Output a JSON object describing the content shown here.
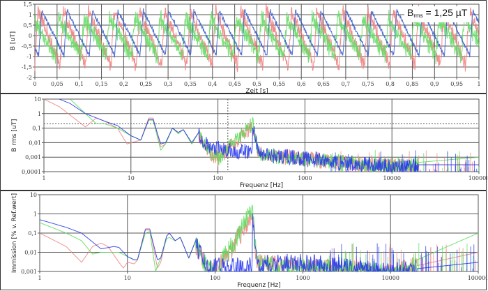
{
  "chart_data": [
    {
      "type": "line",
      "title": "",
      "xlabel": "Zeit [s]",
      "ylabel": "B [uT]",
      "xlim": [
        0,
        1
      ],
      "ylim": [
        -2,
        1.5
      ],
      "grid": true,
      "x_ticks": [
        "0",
        "0,05",
        "0,1",
        "0,15",
        "0,2",
        "0,25",
        "0,3",
        "0,35",
        "0,4",
        "0,45",
        "0,5",
        "0,55",
        "0,6",
        "0,65",
        "0,7",
        "0,75",
        "0,8",
        "0,85",
        "0,9",
        "0,95",
        "1"
      ],
      "y_ticks": [
        "1,5",
        "1",
        "0,5",
        "0",
        "-0,5",
        "-1",
        "-1,5",
        "-2"
      ],
      "annotation": {
        "prefix": "B",
        "subscript": "rms",
        "text": " = 1,25 µT"
      },
      "series": [
        {
          "name": "blue",
          "color": "#3a5fcd",
          "description": "sawtooth ~17.5 Hz, peaks ~1.2, troughs ~-1.0"
        },
        {
          "name": "red",
          "color": "#f08080",
          "description": "sawtooth ~17.5 Hz with ripple, peaks ~1.2, troughs ~-1.5"
        },
        {
          "name": "green",
          "color": "#66dd66",
          "description": "sawtooth ~17.5 Hz with ripple, peaks ~0.9, troughs ~-1.0"
        }
      ],
      "reference_line": {
        "y": 0,
        "style": "dotted"
      }
    },
    {
      "type": "line",
      "title": "",
      "xlabel": "Frequenz [Hz]",
      "ylabel": "B rms [uT]",
      "xscale": "log",
      "yscale": "log",
      "xlim": [
        1,
        100000
      ],
      "ylim": [
        0.0001,
        10
      ],
      "grid": true,
      "x_ticks": [
        "1",
        "10",
        "100",
        "1000",
        "10000",
        "100000"
      ],
      "y_ticks": [
        "10",
        "1",
        "0,1",
        "0,01",
        "0,001",
        "0,0001"
      ],
      "reference_lines": [
        {
          "axis": "y",
          "value": 0.2,
          "style": "dotted"
        },
        {
          "axis": "x",
          "value": 130,
          "style": "dotted"
        }
      ],
      "series": [
        {
          "name": "blue",
          "color": "#2233ee",
          "x": [
            1.5,
            2,
            3,
            5,
            7,
            10,
            13,
            16,
            18,
            22,
            25,
            30,
            35,
            40,
            50,
            60,
            80,
            100,
            150,
            250,
            250,
            300,
            1000,
            3000,
            10000,
            100000
          ],
          "values": [
            10,
            5,
            1,
            0.3,
            0.15,
            0.03,
            0.015,
            0.4,
            0.4,
            0.008,
            0.01,
            0.1,
            0.05,
            0.08,
            0.01,
            0.05,
            0.005,
            0.005,
            0.003,
            0.003,
            0.2,
            0.002,
            0.001,
            0.0005,
            0.0003,
            0.0003
          ]
        },
        {
          "name": "red",
          "color": "#f08080",
          "x": [
            1,
            1.5,
            3,
            4,
            5,
            7,
            9,
            10,
            13,
            16,
            18,
            22,
            25,
            30,
            35,
            40,
            50,
            60,
            80,
            100,
            250,
            300,
            1000,
            3000,
            10000,
            100000
          ],
          "values": [
            10,
            3,
            0.12,
            0.5,
            0.3,
            0.1,
            0.008,
            0.01,
            0.015,
            0.5,
            0.5,
            0.005,
            0.008,
            0.1,
            0.05,
            0.08,
            0.008,
            0.05,
            0.003,
            0.001,
            0.15,
            0.002,
            0.001,
            0.0005,
            0.0003,
            0.0003
          ]
        },
        {
          "name": "green",
          "color": "#55dd55",
          "x": [
            2,
            3,
            4,
            5,
            7,
            10,
            13,
            16,
            18,
            22,
            25,
            30,
            35,
            40,
            50,
            60,
            80,
            100,
            250,
            300,
            1000,
            3000,
            10000,
            100000
          ],
          "values": [
            10,
            1,
            0.2,
            0.2,
            0.1,
            0.03,
            0.015,
            0.35,
            0.35,
            0.003,
            0.008,
            0.1,
            0.04,
            0.08,
            0.008,
            0.05,
            0.003,
            0.001,
            0.25,
            0.002,
            0.001,
            0.0005,
            0.0003,
            0.001
          ]
        }
      ]
    },
    {
      "type": "line",
      "title": "",
      "xlabel": "Frequenz [Hz]",
      "ylabel": "Immission [% v. Ref.wert]",
      "xscale": "log",
      "yscale": "log",
      "xlim": [
        1,
        100000
      ],
      "ylim": [
        0.001,
        10
      ],
      "grid": true,
      "x_ticks": [
        "1",
        "10",
        "100",
        "1000",
        "10000",
        "100000"
      ],
      "y_ticks": [
        "10",
        "1",
        "0,1",
        "0,01",
        "0,001"
      ],
      "series": [
        {
          "name": "blue",
          "color": "#2233ee",
          "x": [
            1,
            2,
            3,
            5,
            7,
            8,
            10,
            12,
            13,
            16,
            18,
            22,
            24,
            28,
            30,
            35,
            40,
            50,
            60,
            80,
            100,
            265,
            265,
            300,
            1000,
            3000,
            10000,
            100000
          ],
          "values": [
            0.5,
            0.2,
            0.1,
            0.015,
            0.02,
            0.018,
            0.006,
            0.004,
            0.004,
            0.15,
            0.15,
            0.004,
            0.005,
            0.07,
            0.1,
            0.04,
            0.06,
            0.005,
            0.04,
            0.002,
            0.002,
            0.002,
            1.5,
            0.003,
            0.003,
            0.002,
            0.001,
            0.003
          ]
        },
        {
          "name": "red",
          "color": "#f08080",
          "x": [
            1,
            2,
            3,
            4,
            5,
            6,
            8,
            9,
            10,
            12,
            13,
            16,
            18,
            22,
            24,
            28,
            30,
            35,
            40,
            50,
            60,
            80,
            100,
            265,
            300,
            1000,
            3000,
            10000,
            100000
          ],
          "values": [
            0.1,
            0.02,
            0.003,
            0.02,
            0.03,
            0.02,
            0.003,
            0.0015,
            0.003,
            0.0025,
            0.004,
            0.17,
            0.17,
            0.0015,
            0.003,
            0.07,
            0.1,
            0.04,
            0.06,
            0.005,
            0.04,
            0.002,
            0.001,
            1.0,
            0.003,
            0.002,
            0.0015,
            0.001,
            0.01
          ]
        },
        {
          "name": "green",
          "color": "#55dd55",
          "x": [
            1,
            2,
            3,
            4,
            5,
            7,
            8,
            10,
            12,
            13,
            16,
            18,
            21,
            22,
            24,
            28,
            30,
            35,
            40,
            50,
            60,
            80,
            100,
            265,
            300,
            1000,
            3000,
            10000,
            100000
          ],
          "values": [
            0.35,
            0.1,
            0.04,
            0.008,
            0.01,
            0.01,
            0.01,
            0.006,
            0.004,
            0.004,
            0.1,
            0.12,
            0.001,
            0.002,
            0.005,
            0.05,
            0.06,
            0.04,
            0.06,
            0.005,
            0.04,
            0.002,
            0.001,
            2.0,
            0.003,
            0.002,
            0.0015,
            0.001,
            0.1
          ]
        }
      ]
    }
  ],
  "panels": {
    "time": {
      "ylabel": "B [uT]",
      "xlabel": "Zeit [s]",
      "annotation_prefix": "B",
      "annotation_sub": "rms",
      "annotation_text": " = 1,25 µT"
    },
    "spectrum": {
      "ylabel": "B rms [uT]",
      "xlabel": "Frequenz [Hz]"
    },
    "immission": {
      "ylabel": "Immission [% v. Ref.wert]",
      "xlabel": "Frequenz [Hz]"
    }
  }
}
